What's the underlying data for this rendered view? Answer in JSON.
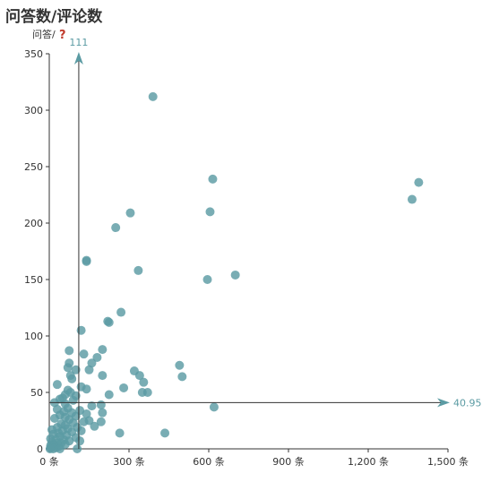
{
  "chart_data": {
    "type": "scatter",
    "title": "问答数/评论数",
    "ylabel": "问答/",
    "ylabel_icon": "question-mark-icon",
    "x_unit": "条",
    "xlim": [
      0,
      1500
    ],
    "ylim": [
      0,
      350
    ],
    "x_ticks": [
      0,
      300,
      600,
      900,
      1200,
      1500
    ],
    "x_tick_labels": [
      "0 条",
      "300 条",
      "600 条",
      "900 条",
      "1,200 条",
      "1,500 条"
    ],
    "y_ticks": [
      0,
      50,
      100,
      150,
      200,
      250,
      300,
      350
    ],
    "y_tick_labels": [
      "0",
      "50",
      "100",
      "150",
      "200",
      "250",
      "300",
      "350"
    ],
    "mark_lines": {
      "x": {
        "value": 111,
        "label": "111"
      },
      "y": {
        "value": 40.95,
        "label": "40.95"
      }
    },
    "colors": {
      "point": "#5b9ba3",
      "axis": "#333333",
      "markline": "#5b9ba3"
    },
    "points": [
      [
        390,
        312
      ],
      [
        1390,
        236
      ],
      [
        1365,
        221
      ],
      [
        615,
        239
      ],
      [
        605,
        210
      ],
      [
        305,
        209
      ],
      [
        250,
        196
      ],
      [
        140,
        167
      ],
      [
        140,
        166
      ],
      [
        335,
        158
      ],
      [
        700,
        154
      ],
      [
        595,
        150
      ],
      [
        270,
        121
      ],
      [
        220,
        113
      ],
      [
        225,
        112
      ],
      [
        120,
        105
      ],
      [
        75,
        87
      ],
      [
        200,
        88
      ],
      [
        130,
        84
      ],
      [
        180,
        81
      ],
      [
        160,
        76
      ],
      [
        75,
        76
      ],
      [
        70,
        72
      ],
      [
        100,
        70
      ],
      [
        150,
        70
      ],
      [
        490,
        74
      ],
      [
        320,
        69
      ],
      [
        340,
        65
      ],
      [
        500,
        64
      ],
      [
        200,
        65
      ],
      [
        80,
        65
      ],
      [
        85,
        62
      ],
      [
        355,
        59
      ],
      [
        120,
        55
      ],
      [
        30,
        57
      ],
      [
        70,
        52
      ],
      [
        80,
        50
      ],
      [
        350,
        50
      ],
      [
        370,
        50
      ],
      [
        280,
        54
      ],
      [
        140,
        53
      ],
      [
        225,
        48
      ],
      [
        60,
        48
      ],
      [
        100,
        47
      ],
      [
        50,
        45
      ],
      [
        40,
        44
      ],
      [
        90,
        43
      ],
      [
        20,
        41
      ],
      [
        60,
        40
      ],
      [
        160,
        38
      ],
      [
        620,
        37
      ],
      [
        195,
        39
      ],
      [
        30,
        35
      ],
      [
        70,
        36
      ],
      [
        115,
        34
      ],
      [
        55,
        33
      ],
      [
        85,
        32
      ],
      [
        140,
        31
      ],
      [
        200,
        32
      ],
      [
        40,
        30
      ],
      [
        100,
        29
      ],
      [
        60,
        28
      ],
      [
        20,
        27
      ],
      [
        75,
        26
      ],
      [
        150,
        25
      ],
      [
        130,
        24
      ],
      [
        195,
        24
      ],
      [
        90,
        23
      ],
      [
        45,
        22
      ],
      [
        60,
        21
      ],
      [
        170,
        20
      ],
      [
        30,
        19
      ],
      [
        105,
        19
      ],
      [
        70,
        18
      ],
      [
        10,
        17
      ],
      [
        50,
        16
      ],
      [
        120,
        16
      ],
      [
        85,
        15
      ],
      [
        265,
        14
      ],
      [
        435,
        14
      ],
      [
        35,
        14
      ],
      [
        15,
        13
      ],
      [
        65,
        12
      ],
      [
        40,
        11
      ],
      [
        100,
        10
      ],
      [
        5,
        9
      ],
      [
        25,
        8
      ],
      [
        55,
        8
      ],
      [
        75,
        7
      ],
      [
        115,
        7
      ],
      [
        10,
        6
      ],
      [
        30,
        5
      ],
      [
        45,
        5
      ],
      [
        15,
        4
      ],
      [
        60,
        4
      ],
      [
        5,
        3
      ],
      [
        20,
        3
      ],
      [
        35,
        2
      ],
      [
        10,
        2
      ],
      [
        25,
        1
      ],
      [
        5,
        1
      ],
      [
        40,
        0
      ],
      [
        105,
        0
      ],
      [
        15,
        0
      ],
      [
        3,
        0
      ]
    ]
  }
}
